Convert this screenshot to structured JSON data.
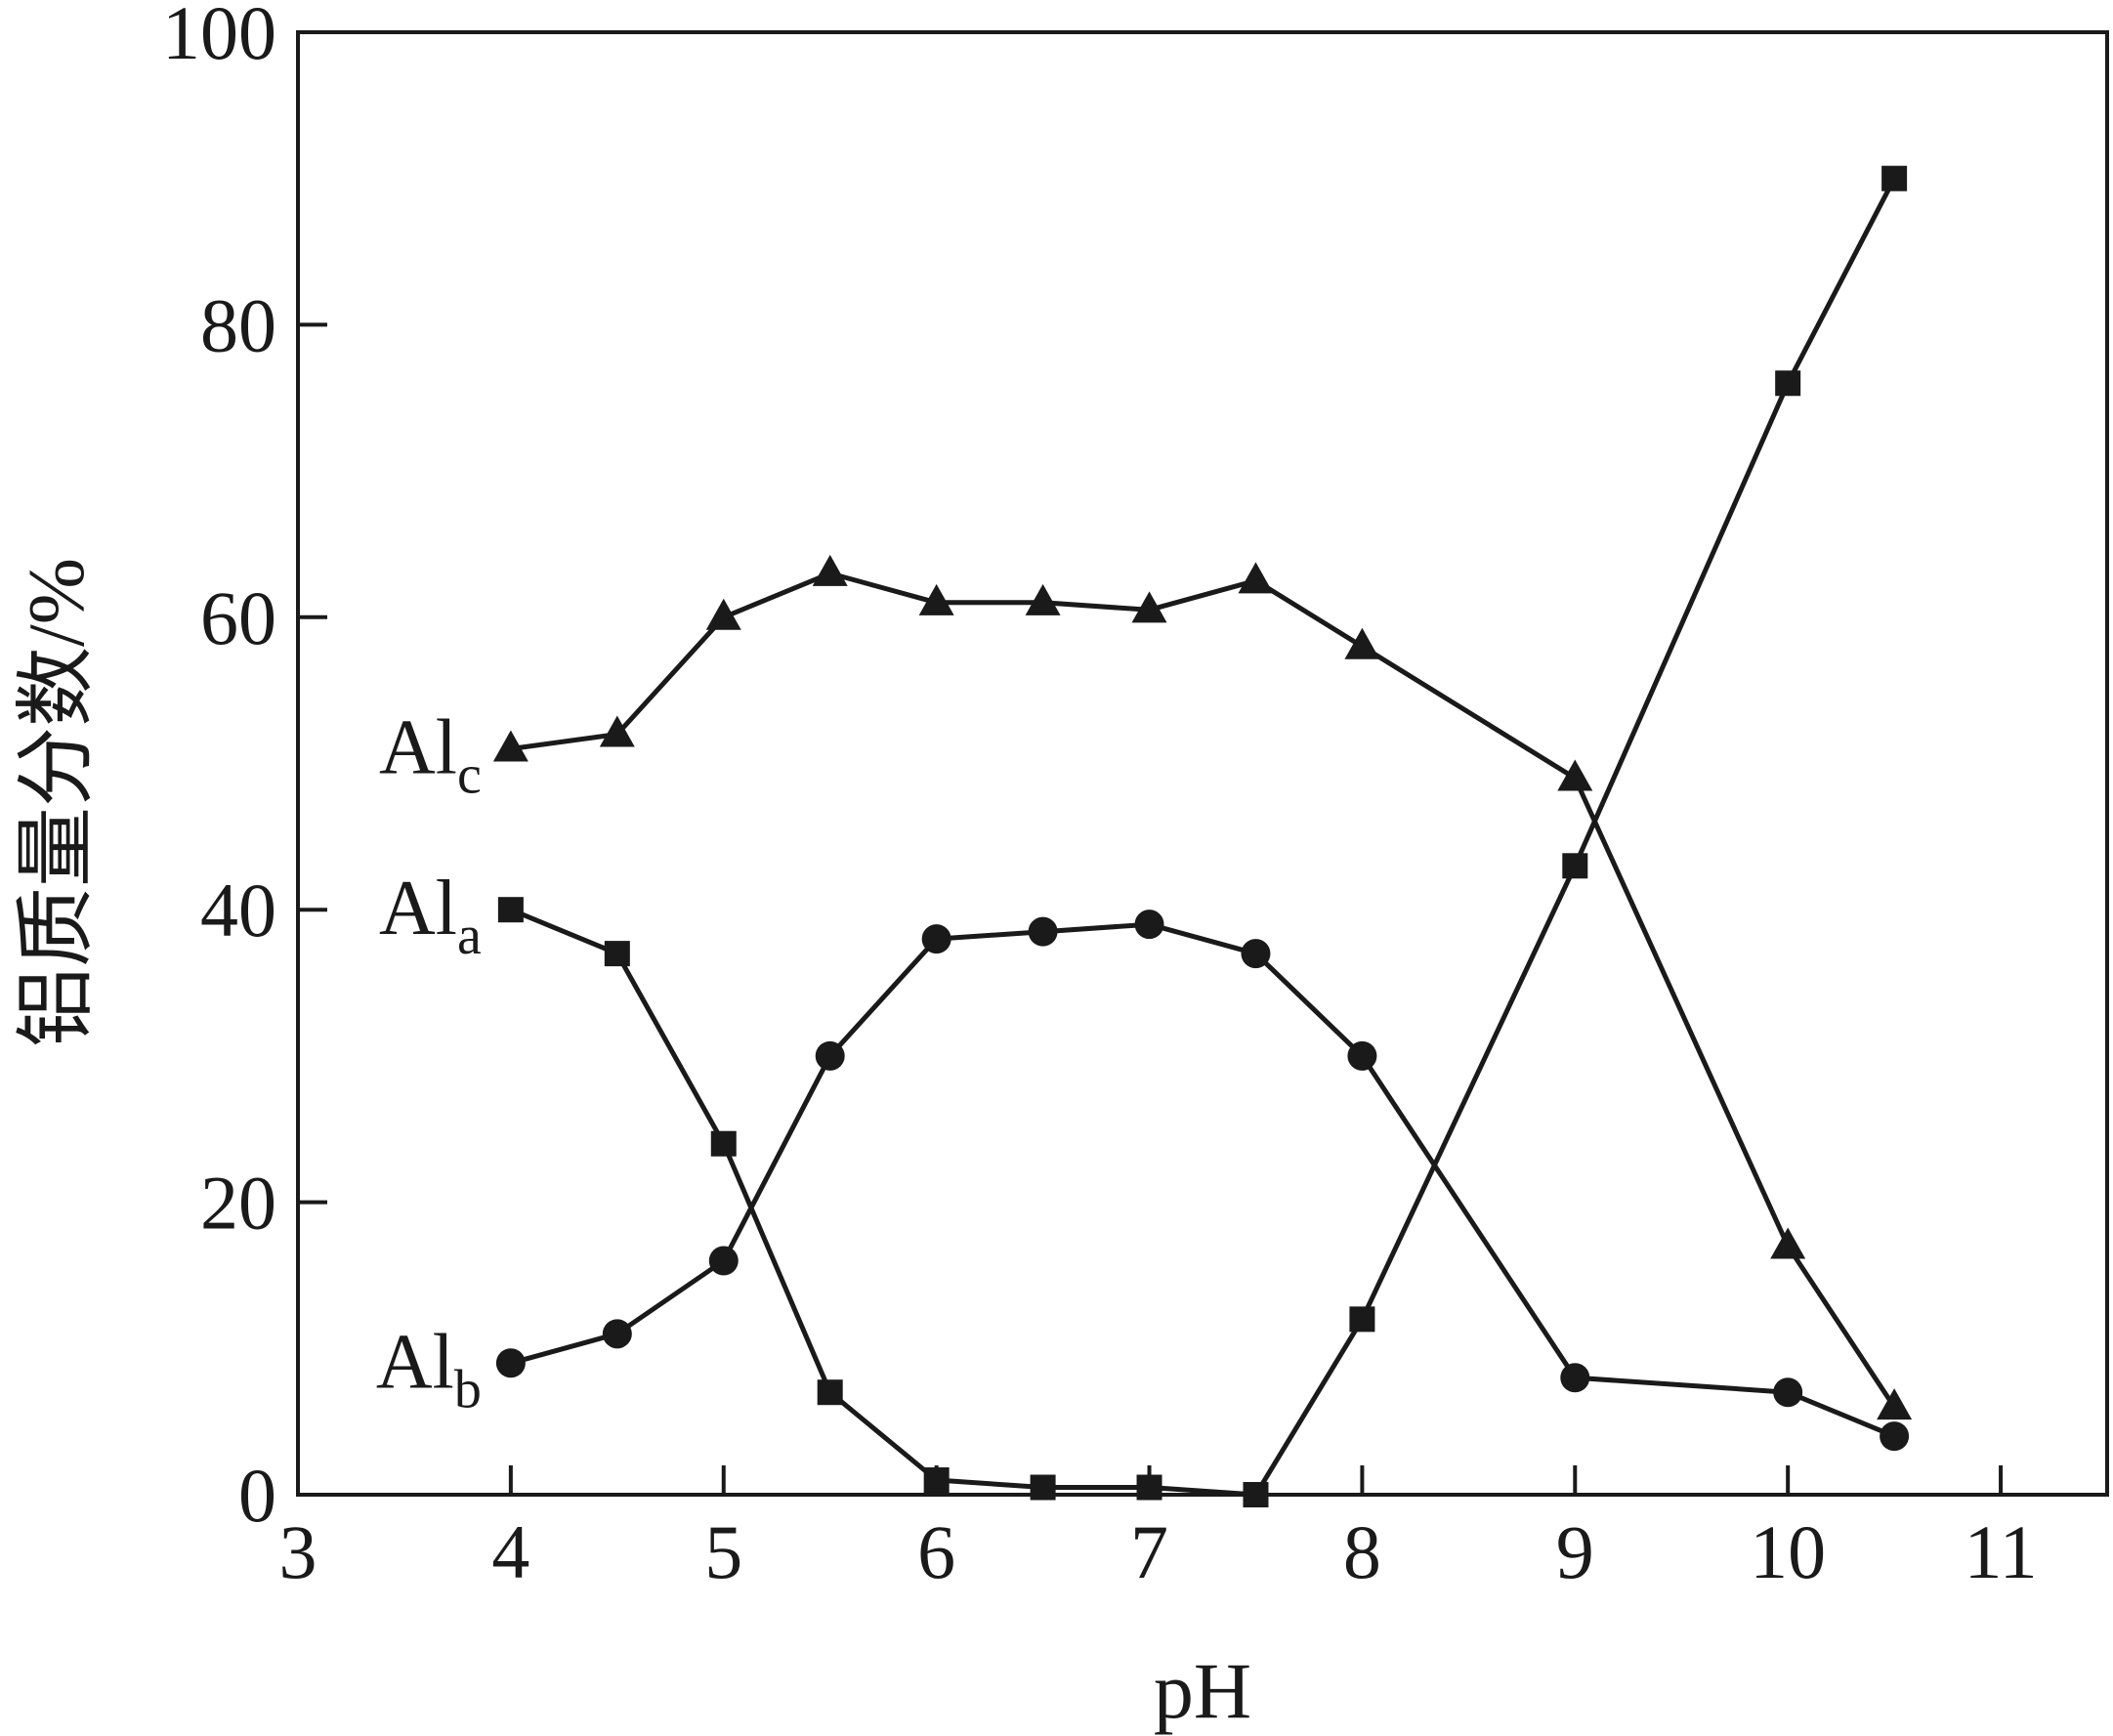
{
  "chart_data": {
    "type": "line",
    "xlabel": "pH",
    "ylabel": "铝质量分数/%",
    "xlim": [
      3,
      11.5
    ],
    "ylim": [
      0,
      100
    ],
    "xticks": [
      3,
      4,
      5,
      6,
      7,
      8,
      9,
      10,
      11
    ],
    "yticks": [
      0,
      20,
      40,
      60,
      80,
      100
    ],
    "grid": false,
    "legend": "inline labels at left end of series",
    "series": [
      {
        "name": "Alc",
        "label_main": "Al",
        "label_sub": "c",
        "marker": "triangle",
        "x": [
          4,
          4.5,
          5,
          5.5,
          6,
          6.5,
          7,
          7.5,
          8,
          9,
          10,
          10.5
        ],
        "y": [
          51,
          52,
          60,
          63,
          61,
          61,
          60.5,
          62.5,
          58,
          49,
          17,
          6
        ]
      },
      {
        "name": "Ala",
        "label_main": "Al",
        "label_sub": "a",
        "marker": "square",
        "x": [
          4,
          4.5,
          5,
          5.5,
          6,
          6.5,
          7,
          7.5,
          8,
          9,
          10,
          10.5
        ],
        "y": [
          40,
          37,
          24,
          7,
          1,
          0.5,
          0.5,
          0,
          12,
          43,
          76,
          90
        ]
      },
      {
        "name": "Alb",
        "label_main": "Al",
        "label_sub": "b",
        "marker": "circle",
        "x": [
          4,
          4.5,
          5,
          5.5,
          6,
          6.5,
          7,
          7.5,
          8,
          9,
          10,
          10.5
        ],
        "y": [
          9,
          11,
          16,
          30,
          38,
          38.5,
          39,
          37,
          30,
          8,
          7,
          4
        ]
      }
    ]
  }
}
